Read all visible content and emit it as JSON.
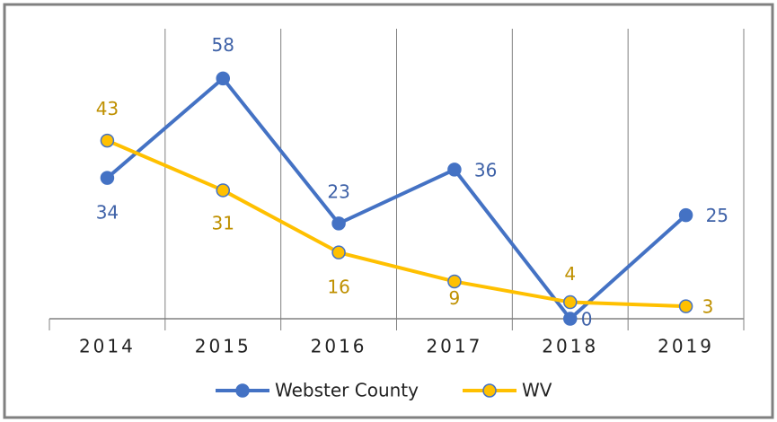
{
  "chart_data": {
    "type": "line",
    "categories": [
      "2014",
      "2015",
      "2016",
      "2017",
      "2018",
      "2019"
    ],
    "series": [
      {
        "name": "Webster County",
        "color": "#4472c4",
        "values": [
          34,
          58,
          23,
          36,
          0,
          25
        ]
      },
      {
        "name": "WV",
        "color": "#ffc000",
        "values": [
          43,
          31,
          16,
          9,
          4,
          3
        ]
      }
    ],
    "ylim": [
      0,
      70
    ],
    "legend": "bottom"
  }
}
